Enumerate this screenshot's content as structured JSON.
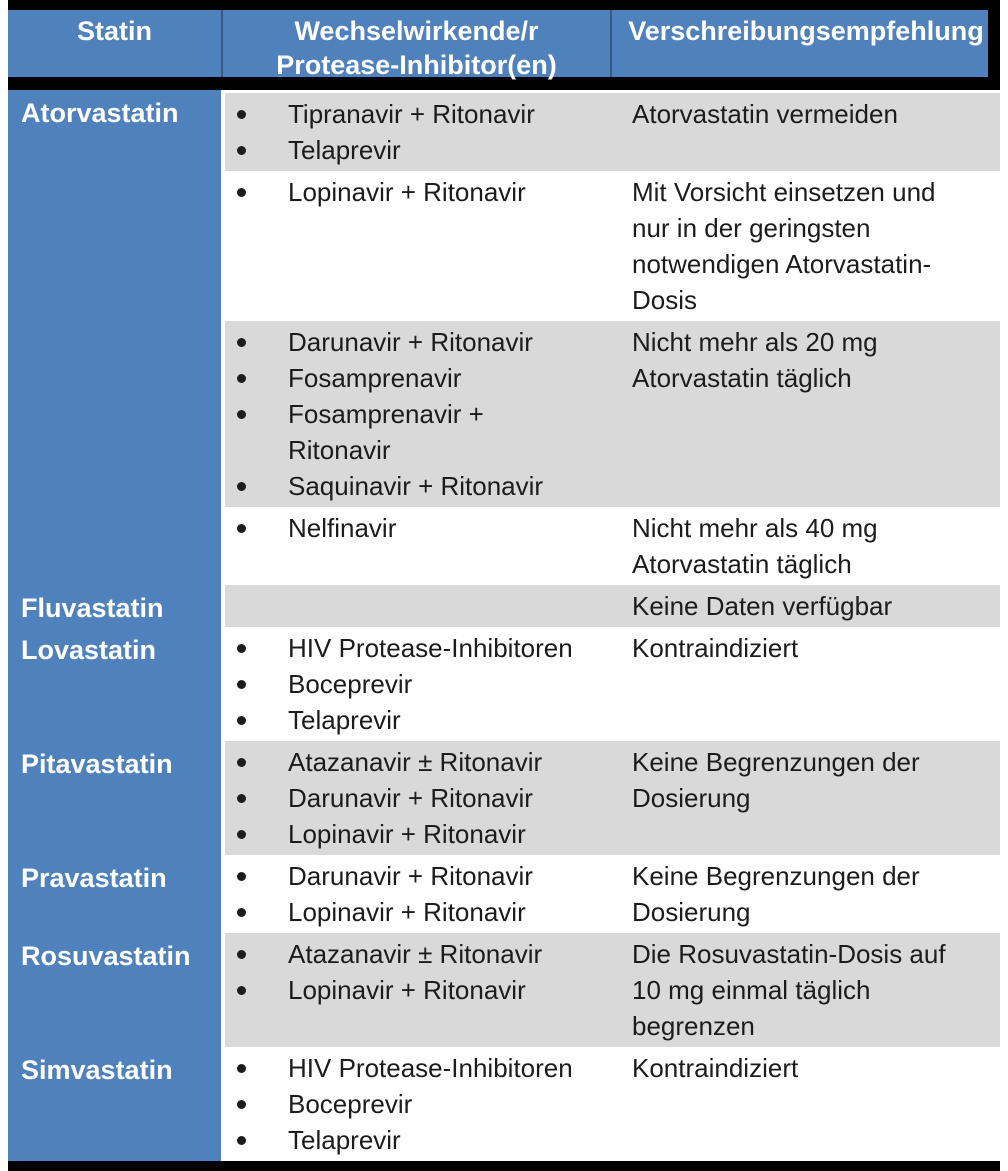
{
  "table": {
    "columns": [
      "Statin",
      "Wechselwirkende/r\nProtease-Inhibitor(en)",
      "Verschreibungsempfehlung"
    ],
    "rows": [
      {
        "statin": "Atorvastatin",
        "sub_rows": [
          {
            "shade": "gray",
            "inhibitors": [
              "Tipranavir + Ritonavir",
              "Telaprevir"
            ],
            "recommendation": "Atorvastatin vermeiden"
          },
          {
            "shade": "white",
            "inhibitors": [
              "Lopinavir + Ritonavir"
            ],
            "recommendation": "Mit Vorsicht einsetzen und\nnur in der geringsten\nnotwendigen Atorvastatin-\nDosis"
          },
          {
            "shade": "gray",
            "inhibitors": [
              "Darunavir + Ritonavir",
              "Fosamprenavir",
              "Fosamprenavir +\nRitonavir",
              "Saquinavir + Ritonavir"
            ],
            "recommendation": "Nicht mehr als 20 mg\nAtorvastatin täglich"
          },
          {
            "shade": "white",
            "inhibitors": [
              "Nelfinavir"
            ],
            "recommendation": "Nicht mehr als 40 mg\nAtorvastatin täglich"
          }
        ]
      },
      {
        "statin": "Fluvastatin",
        "sub_rows": [
          {
            "shade": "gray",
            "inhibitors": [],
            "recommendation": "Keine Daten verfügbar"
          }
        ]
      },
      {
        "statin": "Lovastatin",
        "sub_rows": [
          {
            "shade": "white",
            "inhibitors": [
              "HIV Protease-Inhibitoren",
              "Boceprevir",
              "Telaprevir"
            ],
            "recommendation": "Kontraindiziert"
          }
        ]
      },
      {
        "statin": "Pitavastatin",
        "sub_rows": [
          {
            "shade": "gray",
            "inhibitors": [
              "Atazanavir ± Ritonavir",
              "Darunavir + Ritonavir",
              "Lopinavir + Ritonavir"
            ],
            "recommendation": "Keine Begrenzungen der\nDosierung"
          }
        ]
      },
      {
        "statin": "Pravastatin",
        "sub_rows": [
          {
            "shade": "white",
            "inhibitors": [
              "Darunavir + Ritonavir",
              "Lopinavir + Ritonavir"
            ],
            "recommendation": "Keine Begrenzungen der\nDosierung"
          }
        ]
      },
      {
        "statin": "Rosuvastatin",
        "sub_rows": [
          {
            "shade": "gray",
            "inhibitors": [
              "Atazanavir ± Ritonavir",
              "Lopinavir + Ritonavir"
            ],
            "recommendation": "Die Rosuvastatin-Dosis auf\n10 mg einmal täglich\nbegrenzen"
          }
        ]
      },
      {
        "statin": "Simvastatin",
        "sub_rows": [
          {
            "shade": "white",
            "inhibitors": [
              "HIV Protease-Inhibitoren",
              "Boceprevir",
              "Telaprevir"
            ],
            "recommendation": "Kontraindiziert"
          }
        ]
      }
    ]
  },
  "colors": {
    "header_blue": "#4f81bd",
    "row_gray": "#d9d9d9",
    "row_white": "#ffffff",
    "border_black": "#000000",
    "header_text": "#ffffff",
    "body_text": "#1c1c1c"
  }
}
